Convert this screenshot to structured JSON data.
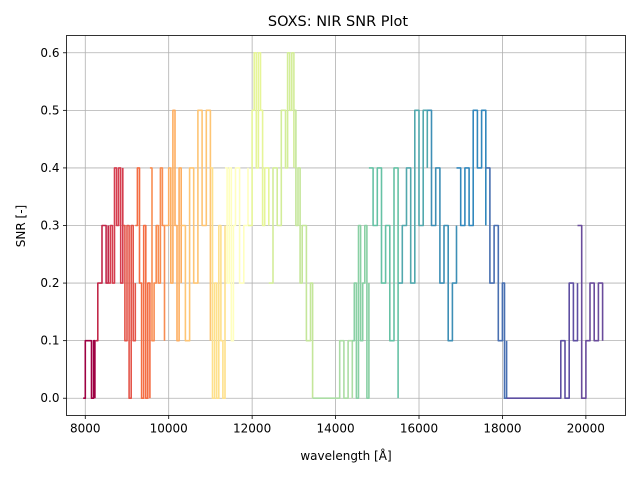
{
  "chart_data": {
    "type": "line",
    "title": "SOXS: NIR SNR Plot",
    "xlabel": "wavelength [Å]",
    "ylabel": "SNR [-]",
    "xlim": [
      7550,
      20950
    ],
    "ylim": [
      -0.03,
      0.63
    ],
    "xticks": [
      8000,
      10000,
      12000,
      14000,
      16000,
      18000,
      20000
    ],
    "yticks": [
      0.0,
      0.1,
      0.2,
      0.3,
      0.4,
      0.5,
      0.6
    ],
    "xtick_labels": [
      "8000",
      "10000",
      "12000",
      "14000",
      "16000",
      "18000",
      "20000"
    ],
    "ytick_labels": [
      "0.0",
      "0.1",
      "0.2",
      "0.3",
      "0.4",
      "0.5",
      "0.6"
    ],
    "grid": true,
    "legend": "none",
    "colormap": "Spectral",
    "segments": [
      {
        "color": "#9e0142",
        "x": [
          7950,
          8000,
          8050,
          8100,
          8150,
          8200,
          8230
        ],
        "y": [
          0.0,
          0.1,
          0.1,
          0.1,
          0.0,
          0.1,
          0.0
        ]
      },
      {
        "color": "#c2294a",
        "x": [
          8250,
          8300,
          8350,
          8400,
          8450,
          8500,
          8550
        ],
        "y": [
          0.1,
          0.2,
          0.2,
          0.3,
          0.3,
          0.2,
          0.3
        ]
      },
      {
        "color": "#d53e4f",
        "x": [
          8560,
          8600,
          8650,
          8700,
          8750,
          8800,
          8850,
          8900
        ],
        "y": [
          0.2,
          0.3,
          0.2,
          0.4,
          0.3,
          0.4,
          0.2,
          0.4
        ]
      },
      {
        "color": "#e45549",
        "x": [
          8900,
          8950,
          9000,
          9050,
          9100,
          9150,
          9200
        ],
        "y": [
          0.3,
          0.1,
          0.3,
          0.0,
          0.3,
          0.1,
          0.2
        ]
      },
      {
        "color": "#f46d43",
        "x": [
          9200,
          9250,
          9300,
          9350,
          9400,
          9450,
          9500,
          9550
        ],
        "y": [
          0.3,
          0.4,
          0.2,
          0.0,
          0.3,
          0.0,
          0.2,
          0.0
        ]
      },
      {
        "color": "#f88d52",
        "x": [
          9550,
          9600,
          9650,
          9700,
          9750,
          9800,
          9850,
          9900
        ],
        "y": [
          0.4,
          0.1,
          0.2,
          0.3,
          0.2,
          0.4,
          0.3,
          0.1
        ]
      },
      {
        "color": "#fdae61",
        "x": [
          9900,
          10000,
          10050,
          10100,
          10150,
          10200,
          10250,
          10300
        ],
        "y": [
          0.3,
          0.4,
          0.2,
          0.5,
          0.3,
          0.1,
          0.4,
          0.2
        ]
      },
      {
        "color": "#fec574",
        "x": [
          10300,
          10400,
          10500,
          10600,
          10700,
          10800,
          10900,
          11000
        ],
        "y": [
          0.3,
          0.1,
          0.4,
          0.2,
          0.5,
          0.3,
          0.5,
          0.1
        ]
      },
      {
        "color": "#fee08b",
        "x": [
          11000,
          11050,
          11100,
          11150,
          11200,
          11250,
          11300,
          11350
        ],
        "y": [
          0.4,
          0.0,
          0.2,
          0.0,
          0.3,
          0.1,
          0.0,
          0.3
        ]
      },
      {
        "color": "#ffffbf",
        "x": [
          11350,
          11400,
          11450,
          11500,
          11550,
          11600,
          11700,
          11800,
          11900
        ],
        "y": [
          0.4,
          0.2,
          0.4,
          0.1,
          0.3,
          0.4,
          0.2,
          0.3,
          0.4
        ]
      },
      {
        "color": "#e6f598",
        "x": [
          11900,
          12000,
          12050,
          12100,
          12150,
          12200,
          12250,
          12300,
          12400
        ],
        "y": [
          0.3,
          0.5,
          0.6,
          0.4,
          0.6,
          0.5,
          0.3,
          0.4,
          0.3
        ]
      },
      {
        "color": "#d3ed99",
        "x": [
          12400,
          12500,
          12600,
          12700,
          12800,
          12850,
          12900,
          12950,
          13000
        ],
        "y": [
          0.2,
          0.4,
          0.3,
          0.5,
          0.4,
          0.6,
          0.5,
          0.6,
          0.4
        ]
      },
      {
        "color": "#c4e69a",
        "x": [
          13000,
          13050,
          13100,
          13150,
          13200,
          13300,
          13400,
          13450
        ],
        "y": [
          0.5,
          0.3,
          0.4,
          0.2,
          0.3,
          0.1,
          0.2,
          0.0
        ]
      },
      {
        "color": "#abdda4",
        "x": [
          13450,
          13600,
          13800,
          14000,
          14100,
          14200,
          14300,
          14400
        ],
        "y": [
          0.0,
          0.0,
          0.0,
          0.0,
          0.1,
          0.0,
          0.1,
          0.0
        ]
      },
      {
        "color": "#89d0a4",
        "x": [
          14400,
          14450,
          14500,
          14550,
          14600,
          14650,
          14700,
          14750,
          14800
        ],
        "y": [
          0.1,
          0.2,
          0.0,
          0.3,
          0.1,
          0.2,
          0.3,
          0.0,
          0.2
        ]
      },
      {
        "color": "#66c2a5",
        "x": [
          14800,
          14900,
          15000,
          15100,
          15200,
          15300,
          15400,
          15500
        ],
        "y": [
          0.4,
          0.3,
          0.4,
          0.2,
          0.3,
          0.1,
          0.4,
          0.0
        ]
      },
      {
        "color": "#52a8ad",
        "x": [
          15500,
          15600,
          15700,
          15800,
          15900,
          16000,
          16100,
          16200
        ],
        "y": [
          0.2,
          0.3,
          0.4,
          0.2,
          0.5,
          0.3,
          0.5,
          0.4
        ]
      },
      {
        "color": "#3e8fb6",
        "x": [
          16200,
          16300,
          16400,
          16500,
          16600,
          16700,
          16800,
          16900
        ],
        "y": [
          0.5,
          0.3,
          0.4,
          0.2,
          0.3,
          0.1,
          0.2,
          0.3
        ]
      },
      {
        "color": "#3288bd",
        "x": [
          16900,
          17000,
          17100,
          17200,
          17300,
          17400,
          17500,
          17600
        ],
        "y": [
          0.4,
          0.3,
          0.4,
          0.3,
          0.5,
          0.4,
          0.5,
          0.3
        ]
      },
      {
        "color": "#4970b1",
        "x": [
          17600,
          17700,
          17800,
          17900,
          18000,
          18050,
          18100
        ],
        "y": [
          0.4,
          0.2,
          0.3,
          0.1,
          0.2,
          0.0,
          0.1
        ]
      },
      {
        "color": "#5e4fa2",
        "x": [
          18100,
          18500,
          19000,
          19300,
          19400,
          19500,
          19600,
          19700,
          19800
        ],
        "y": [
          0.0,
          0.0,
          0.0,
          0.0,
          0.1,
          0.0,
          0.2,
          0.1,
          0.2
        ]
      },
      {
        "color": "#6a4c9c",
        "x": [
          19800,
          19900,
          20000,
          20100,
          20200,
          20300,
          20400
        ],
        "y": [
          0.3,
          0.0,
          0.1,
          0.2,
          0.1,
          0.2,
          0.1
        ]
      }
    ]
  }
}
